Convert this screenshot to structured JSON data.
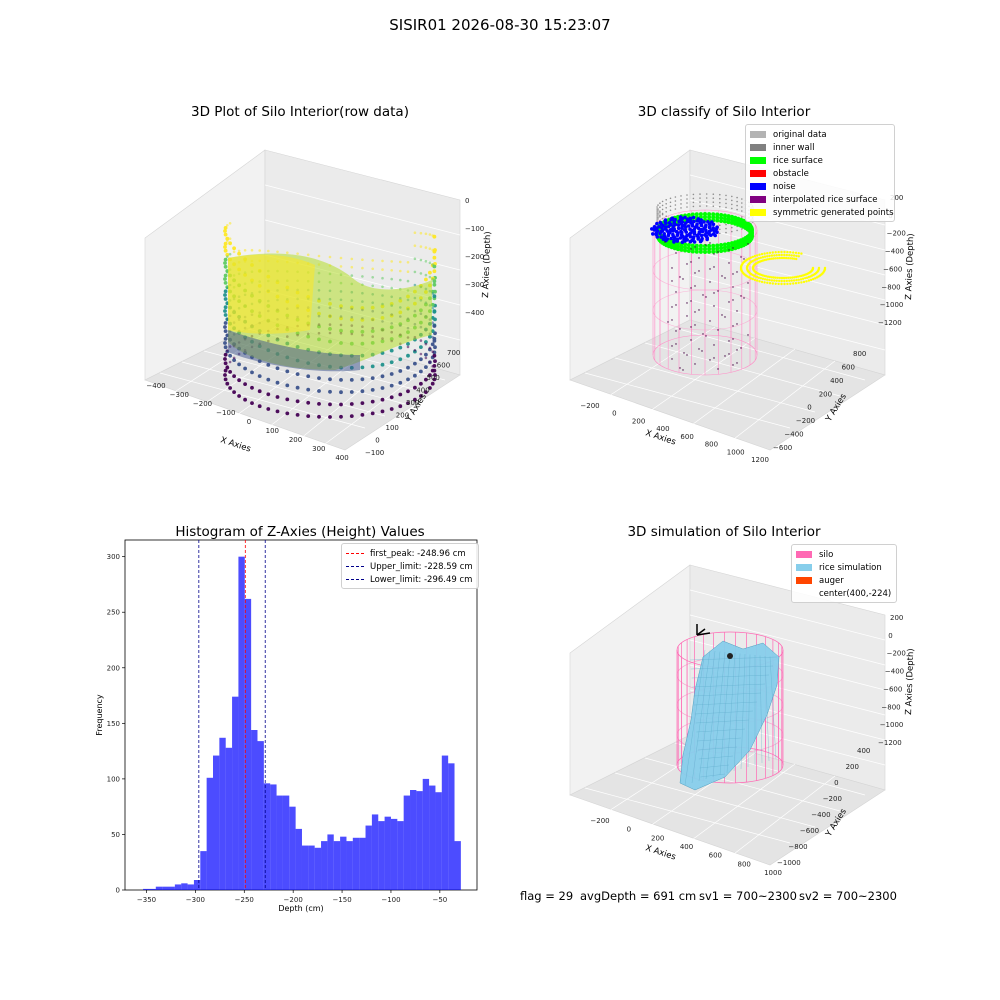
{
  "figure": {
    "suptitle": "SISIR01 2026-08-30 15:23:07",
    "footer": {
      "flag": "flag = 29",
      "avg_depth": "avgDepth = 691 cm",
      "sv1": "sv1 = 700~2300",
      "sv2": "sv2 = 700~2300"
    }
  },
  "chart_data": [
    {
      "type": "scatter3d",
      "title": "3D Plot of Silo Interior(row data)",
      "xlabel": "X Axies",
      "ylabel": "Y Axies",
      "zlabel": "Z Axies (Depth)",
      "x_ticks": [
        "−400",
        "−300",
        "−200",
        "−100",
        "0",
        "100",
        "200",
        "300",
        "400"
      ],
      "y_ticks": [
        "−100",
        "0",
        "100",
        "200",
        "300",
        "400",
        "500",
        "600",
        "700"
      ],
      "z_ticks": [
        "−400",
        "−300",
        "−200",
        "−100",
        "0"
      ],
      "colormap": "viridis"
    },
    {
      "type": "scatter3d",
      "title": "3D classify of Silo Interior",
      "xlabel": "X Axies",
      "ylabel": "Y Axies",
      "zlabel": "Z Axies (Depth)",
      "x_ticks": [
        "−200",
        "0",
        "200",
        "400",
        "600",
        "800",
        "1000",
        "1200"
      ],
      "y_ticks": [
        "−600",
        "−400",
        "−200",
        "0",
        "200",
        "400",
        "600",
        "800"
      ],
      "z_ticks": [
        "−1200",
        "−1000",
        "−800",
        "−600",
        "−400",
        "−200",
        "0",
        "200"
      ],
      "legend": [
        {
          "label": "original data",
          "color": "#b3b3b3"
        },
        {
          "label": "inner wall",
          "color": "#808080"
        },
        {
          "label": "rice surface",
          "color": "#00ff00"
        },
        {
          "label": "obstacle",
          "color": "#ff0000"
        },
        {
          "label": "noise",
          "color": "#0000ff"
        },
        {
          "label": "interpolated rice surface",
          "color": "#800080"
        },
        {
          "label": "symmetric generated points",
          "color": "#ffff00"
        }
      ]
    },
    {
      "type": "bar",
      "title": "Histogram of Z-Axies (Height) Values",
      "xlabel": "Depth (cm)",
      "ylabel": "Frequency",
      "xlim": [
        -372,
        -12
      ],
      "ylim": [
        0,
        315
      ],
      "x_ticks": [
        -350,
        -300,
        -250,
        -200,
        -150,
        -100,
        -50
      ],
      "y_ticks": [
        0,
        50,
        100,
        150,
        200,
        250,
        300
      ],
      "bin_width": 6.5,
      "bin_start": -353.5,
      "values": [
        1,
        1,
        3,
        3,
        3,
        5,
        6,
        5,
        9,
        35,
        101,
        121,
        137,
        128,
        174,
        300,
        262,
        144,
        134,
        96,
        95,
        85,
        85,
        75,
        55,
        40,
        40,
        38,
        44,
        50,
        44,
        48,
        44,
        47,
        47,
        58,
        68,
        62,
        66,
        64,
        62,
        85,
        90,
        89,
        100,
        94,
        88,
        121,
        114,
        44
      ],
      "color": "#0000ff",
      "vlines": [
        {
          "label": "first_peak: -248.96 cm",
          "x": -248.96,
          "color": "#ff0000"
        },
        {
          "label": "Upper_limit: -228.59 cm",
          "x": -228.59,
          "color": "#00008b"
        },
        {
          "label": "Lower_limit: -296.49 cm",
          "x": -296.49,
          "color": "#00008b"
        }
      ],
      "legend_position": "top-right"
    },
    {
      "type": "surface3d",
      "title": "3D simulation of Silo Interior",
      "xlabel": "X Axies",
      "ylabel": "Y Axies",
      "zlabel": "Z Axies (Depth)",
      "x_ticks": [
        "−200",
        "0",
        "200",
        "400",
        "600",
        "800",
        "1000"
      ],
      "y_ticks": [
        "−1000",
        "−800",
        "−600",
        "−400",
        "−200",
        "0",
        "200",
        "400"
      ],
      "z_ticks": [
        "−1200",
        "−1000",
        "−800",
        "−600",
        "−400",
        "−200",
        "0",
        "200"
      ],
      "legend": [
        {
          "label": "silo",
          "color": "#ff69b4"
        },
        {
          "label": "rice simulation",
          "color": "#87ceeb"
        },
        {
          "label": "auger",
          "color": "#ff4500"
        },
        {
          "label": "center(400,-224)",
          "color": ""
        }
      ]
    }
  ]
}
